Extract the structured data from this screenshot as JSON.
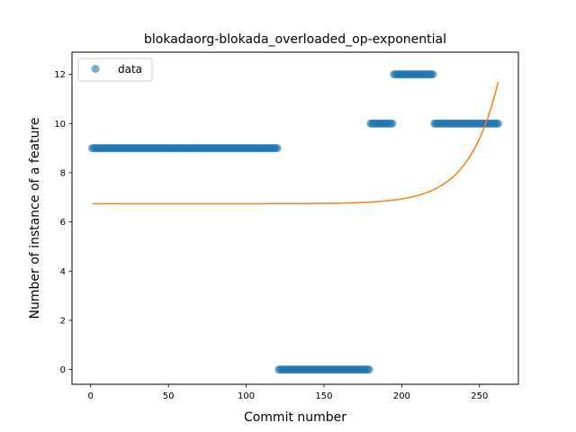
{
  "chart_data": {
    "type": "scatter",
    "title": "blokadaorg-blokada_overloaded_op-exponential",
    "xlabel": "Commit number",
    "ylabel": "Number of instance of a feature",
    "xlim": [
      -12,
      275
    ],
    "ylim": [
      -0.6,
      12.9
    ],
    "xticks": [
      0,
      50,
      100,
      150,
      200,
      250
    ],
    "yticks": [
      0,
      2,
      4,
      6,
      8,
      10,
      12
    ],
    "legend": {
      "position": "top-left",
      "entries": [
        "data"
      ]
    },
    "colors": {
      "data": "#1f77b4",
      "fit": "#ff7f0e"
    },
    "grid": false,
    "series": [
      {
        "name": "data",
        "kind": "scatter",
        "segments": [
          {
            "x_start": 1,
            "x_end": 120,
            "y": 9
          },
          {
            "x_start": 121,
            "x_end": 179,
            "y": 0
          },
          {
            "x_start": 180,
            "x_end": 194,
            "y": 10
          },
          {
            "x_start": 195,
            "x_end": 220,
            "y": 12
          },
          {
            "x_start": 221,
            "x_end": 262,
            "y": 10
          }
        ]
      },
      {
        "kind": "line",
        "model": "exponential",
        "params": {
          "a": 6.74,
          "b": 6e-06,
          "k": 0.052
        },
        "x_start": 1,
        "x_end": 262
      }
    ]
  }
}
